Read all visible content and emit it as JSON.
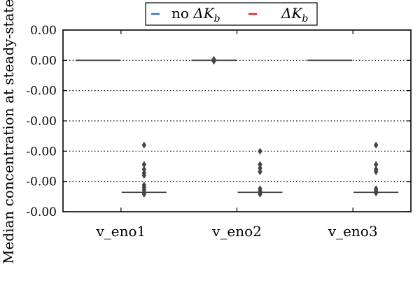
{
  "chart_data": {
    "type": "boxplot",
    "title": "",
    "xlabel": "",
    "ylabel": "Median concentration at steady-state (",
    "ylim": [
      -3.02e-06,
      -2e-08
    ],
    "y_ticks": [
      {
        "value": -2e-08,
        "label": "0.00"
      },
      {
        "value": -5.2e-07,
        "label": "0.00"
      },
      {
        "value": -1.02e-06,
        "label": "-0.00"
      },
      {
        "value": -1.52e-06,
        "label": "-0.00"
      },
      {
        "value": -2.02e-06,
        "label": "-0.00"
      },
      {
        "value": -2.52e-06,
        "label": "-0.00"
      },
      {
        "value": -3.02e-06,
        "label": "-0.00"
      }
    ],
    "grid": "dotted horizontal",
    "categories": [
      "v_eno1",
      "v_eno2",
      "v_eno3"
    ],
    "legend": {
      "placement": "top-center",
      "entries": [
        {
          "prefix": "no ",
          "math": "ΔK",
          "sub": "b",
          "color": "#3b78b8"
        },
        {
          "prefix": "",
          "math": "ΔK",
          "sub": "b",
          "color": "#e8262b"
        }
      ]
    },
    "series": [
      {
        "group": "no ΔKb",
        "boxes": [
          {
            "median": -5.2e-07,
            "outliers": []
          },
          {
            "median": -5.2e-07,
            "outliers": [
              -5.05e-07,
              -5.2e-07,
              -5.35e-07
            ]
          },
          {
            "median": -5.2e-07,
            "outliers": []
          }
        ]
      },
      {
        "group": "ΔKb",
        "boxes": [
          {
            "median": -2.7e-06,
            "outliers": [
              -1.92e-06,
              -2.24e-06,
              -2.32e-06,
              -2.38e-06,
              -2.42e-06,
              -2.58e-06,
              -2.62e-06,
              -2.66e-06,
              -2.7e-06,
              -2.73e-06
            ]
          },
          {
            "median": -2.7e-06,
            "outliers": [
              -2.02e-06,
              -2.24e-06,
              -2.3e-06,
              -2.36e-06,
              -2.64e-06,
              -2.68e-06,
              -2.7e-06,
              -2.73e-06
            ]
          },
          {
            "median": -2.7e-06,
            "outliers": [
              -1.92e-06,
              -2.24e-06,
              -2.32e-06,
              -2.36e-06,
              -2.64e-06,
              -2.68e-06,
              -2.71e-06
            ]
          }
        ]
      }
    ]
  }
}
